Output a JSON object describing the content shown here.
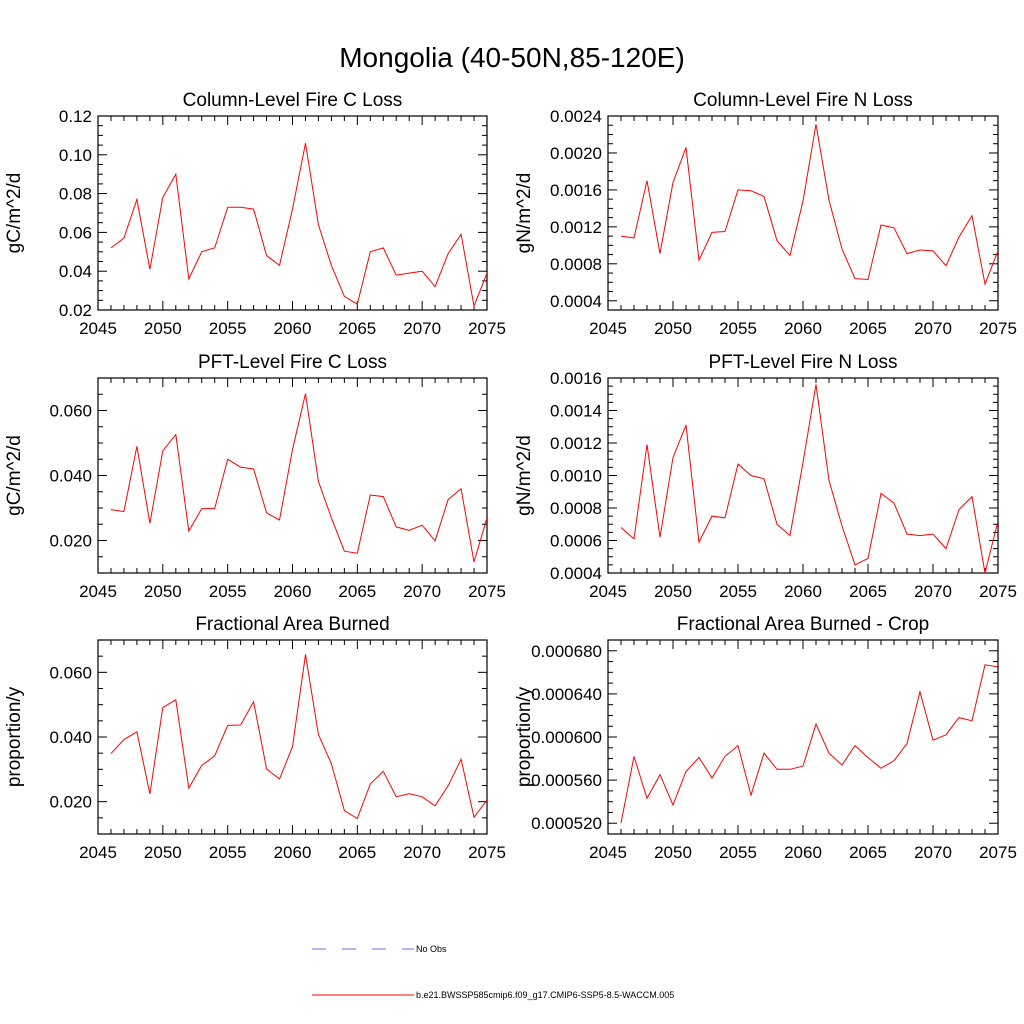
{
  "figure_title": "Mongolia (40-50N,85-120E)",
  "colors": {
    "model_line": "#ff0000",
    "obs_line": "#6f6fd8",
    "axis": "#000000"
  },
  "legend": {
    "obs_label": "No Obs",
    "model_label": "b.e21.BWSSP585cmip6.f09_g17.CMIP6-SSP5-8.5-WACCM.005"
  },
  "chart_data": [
    {
      "type": "line",
      "title": "Column-Level Fire C Loss",
      "xlabel": "",
      "ylabel": "gC/m^2/d",
      "xlim": [
        2045,
        2075
      ],
      "ylim": [
        0.02,
        0.12
      ],
      "xticks": [
        2045,
        2050,
        2055,
        2060,
        2065,
        2070,
        2075
      ],
      "yticks": [
        0.02,
        0.04,
        0.06,
        0.08,
        0.1,
        0.12
      ],
      "ytick_labels": [
        "0.02",
        "0.04",
        "0.06",
        "0.08",
        "0.10",
        "0.12"
      ],
      "x": [
        2046,
        2047,
        2048,
        2049,
        2050,
        2051,
        2052,
        2053,
        2054,
        2055,
        2056,
        2057,
        2058,
        2059,
        2060,
        2061,
        2062,
        2063,
        2064,
        2065,
        2066,
        2067,
        2068,
        2069,
        2070,
        2071,
        2072,
        2073,
        2074,
        2075
      ],
      "series": [
        {
          "name": "b.e21.BWSSP585cmip6.f09_g17.CMIP6-SSP5-8.5-WACCM.005",
          "values": [
            0.052,
            0.057,
            0.077,
            0.041,
            0.078,
            0.09,
            0.036,
            0.05,
            0.052,
            0.073,
            0.073,
            0.072,
            0.048,
            0.043,
            0.072,
            0.106,
            0.064,
            0.043,
            0.027,
            0.023,
            0.05,
            0.052,
            0.038,
            0.039,
            0.04,
            0.032,
            0.049,
            0.059,
            0.022,
            0.039
          ]
        }
      ]
    },
    {
      "type": "line",
      "title": "Column-Level Fire N Loss",
      "xlabel": "",
      "ylabel": "gN/m^2/d",
      "xlim": [
        2045,
        2075
      ],
      "ylim": [
        0.0003,
        0.0024
      ],
      "xticks": [
        2045,
        2050,
        2055,
        2060,
        2065,
        2070,
        2075
      ],
      "yticks": [
        0.0004,
        0.0008,
        0.0012,
        0.0016,
        0.002,
        0.0024
      ],
      "ytick_labels": [
        "0.0004",
        "0.0008",
        "0.0012",
        "0.0016",
        "0.0020",
        "0.0024"
      ],
      "x": [
        2046,
        2047,
        2048,
        2049,
        2050,
        2051,
        2052,
        2053,
        2054,
        2055,
        2056,
        2057,
        2058,
        2059,
        2060,
        2061,
        2062,
        2063,
        2064,
        2065,
        2066,
        2067,
        2068,
        2069,
        2070,
        2071,
        2072,
        2073,
        2074,
        2075
      ],
      "series": [
        {
          "name": "b.e21.BWSSP585cmip6.f09_g17.CMIP6-SSP5-8.5-WACCM.005",
          "values": [
            0.0011,
            0.00108,
            0.0017,
            0.00091,
            0.00168,
            0.00206,
            0.00084,
            0.00114,
            0.00115,
            0.0016,
            0.00159,
            0.00153,
            0.00105,
            0.00089,
            0.00148,
            0.00231,
            0.00149,
            0.00096,
            0.00064,
            0.00063,
            0.00122,
            0.00119,
            0.00091,
            0.00095,
            0.00094,
            0.00078,
            0.00109,
            0.00132,
            0.00058,
            0.00094
          ]
        }
      ]
    },
    {
      "type": "line",
      "title": "PFT-Level Fire C Loss",
      "xlabel": "",
      "ylabel": "gC/m^2/d",
      "xlim": [
        2045,
        2075
      ],
      "ylim": [
        0.01,
        0.07
      ],
      "xticks": [
        2045,
        2050,
        2055,
        2060,
        2065,
        2070,
        2075
      ],
      "yticks": [
        0.02,
        0.04,
        0.06
      ],
      "ytick_labels": [
        "0.020",
        "0.040",
        "0.060"
      ],
      "x": [
        2046,
        2047,
        2048,
        2049,
        2050,
        2051,
        2052,
        2053,
        2054,
        2055,
        2056,
        2057,
        2058,
        2059,
        2060,
        2061,
        2062,
        2063,
        2064,
        2065,
        2066,
        2067,
        2068,
        2069,
        2070,
        2071,
        2072,
        2073,
        2074,
        2075
      ],
      "series": [
        {
          "name": "b.e21.BWSSP585cmip6.f09_g17.CMIP6-SSP5-8.5-WACCM.005",
          "values": [
            0.0295,
            0.0289,
            0.049,
            0.0253,
            0.0476,
            0.0526,
            0.0229,
            0.0298,
            0.0298,
            0.045,
            0.0426,
            0.042,
            0.0285,
            0.0263,
            0.048,
            0.0652,
            0.0382,
            0.027,
            0.0167,
            0.0161,
            0.034,
            0.0335,
            0.0242,
            0.0231,
            0.0247,
            0.0199,
            0.0326,
            0.0359,
            0.0134,
            0.027
          ]
        }
      ]
    },
    {
      "type": "line",
      "title": "PFT-Level Fire N Loss",
      "xlabel": "",
      "ylabel": "gN/m^2/d",
      "xlim": [
        2045,
        2075
      ],
      "ylim": [
        0.0004,
        0.0016
      ],
      "xticks": [
        2045,
        2050,
        2055,
        2060,
        2065,
        2070,
        2075
      ],
      "yticks": [
        0.0004,
        0.0006,
        0.0008,
        0.001,
        0.0012,
        0.0014,
        0.0016
      ],
      "ytick_labels": [
        "0.0004",
        "0.0006",
        "0.0008",
        "0.0010",
        "0.0012",
        "0.0014",
        "0.0016"
      ],
      "x": [
        2046,
        2047,
        2048,
        2049,
        2050,
        2051,
        2052,
        2053,
        2054,
        2055,
        2056,
        2057,
        2058,
        2059,
        2060,
        2061,
        2062,
        2063,
        2064,
        2065,
        2066,
        2067,
        2068,
        2069,
        2070,
        2071,
        2072,
        2073,
        2074,
        2075
      ],
      "series": [
        {
          "name": "b.e21.BWSSP585cmip6.f09_g17.CMIP6-SSP5-8.5-WACCM.005",
          "values": [
            0.00068,
            0.00061,
            0.00119,
            0.00062,
            0.00111,
            0.00131,
            0.00059,
            0.00075,
            0.00074,
            0.00107,
            0.001,
            0.00098,
            0.0007,
            0.00063,
            0.00108,
            0.00156,
            0.00097,
            0.00069,
            0.00045,
            0.00049,
            0.00089,
            0.00083,
            0.00064,
            0.00063,
            0.00064,
            0.00055,
            0.00079,
            0.00087,
            0.0004,
            0.00072
          ]
        }
      ]
    },
    {
      "type": "line",
      "title": "Fractional Area Burned",
      "xlabel": "",
      "ylabel": "proportion/y",
      "xlim": [
        2045,
        2075
      ],
      "ylim": [
        0.01,
        0.07
      ],
      "xticks": [
        2045,
        2050,
        2055,
        2060,
        2065,
        2070,
        2075
      ],
      "yticks": [
        0.02,
        0.04,
        0.06
      ],
      "ytick_labels": [
        "0.020",
        "0.040",
        "0.060"
      ],
      "x": [
        2046,
        2047,
        2048,
        2049,
        2050,
        2051,
        2052,
        2053,
        2054,
        2055,
        2056,
        2057,
        2058,
        2059,
        2060,
        2061,
        2062,
        2063,
        2064,
        2065,
        2066,
        2067,
        2068,
        2069,
        2070,
        2071,
        2072,
        2073,
        2074,
        2075
      ],
      "series": [
        {
          "name": "b.e21.BWSSP585cmip6.f09_g17.CMIP6-SSP5-8.5-WACCM.005",
          "values": [
            0.0349,
            0.0392,
            0.0416,
            0.0224,
            0.0491,
            0.0515,
            0.0242,
            0.0312,
            0.0342,
            0.0436,
            0.0437,
            0.0509,
            0.0301,
            0.027,
            0.037,
            0.0655,
            0.0408,
            0.0317,
            0.0172,
            0.0148,
            0.0255,
            0.0294,
            0.0215,
            0.0225,
            0.0215,
            0.0187,
            0.0249,
            0.0331,
            0.0152,
            0.0205
          ]
        }
      ]
    },
    {
      "type": "line",
      "title": "Fractional Area Burned - Crop",
      "xlabel": "",
      "ylabel": "proportion/y",
      "xlim": [
        2045,
        2075
      ],
      "ylim": [
        0.00051,
        0.00069
      ],
      "xticks": [
        2045,
        2050,
        2055,
        2060,
        2065,
        2070,
        2075
      ],
      "yticks": [
        0.00052,
        0.00056,
        0.0006,
        0.00064,
        0.00068
      ],
      "ytick_labels": [
        "0.000520",
        "0.000560",
        "0.000600",
        "0.000640",
        "0.000680"
      ],
      "x": [
        2046,
        2047,
        2048,
        2049,
        2050,
        2051,
        2052,
        2053,
        2054,
        2055,
        2056,
        2057,
        2058,
        2059,
        2060,
        2061,
        2062,
        2063,
        2064,
        2065,
        2066,
        2067,
        2068,
        2069,
        2070,
        2071,
        2072,
        2073,
        2074,
        2075
      ],
      "series": [
        {
          "name": "b.e21.BWSSP585cmip6.f09_g17.CMIP6-SSP5-8.5-WACCM.005",
          "values": [
            0.00052,
            0.000582,
            0.000543,
            0.000565,
            0.000537,
            0.000568,
            0.000581,
            0.000562,
            0.000582,
            0.000592,
            0.000546,
            0.000585,
            0.00057,
            0.00057,
            0.000573,
            0.000612,
            0.000585,
            0.000574,
            0.000592,
            0.000581,
            0.000571,
            0.000578,
            0.000594,
            0.000642,
            0.000597,
            0.000602,
            0.000618,
            0.000615,
            0.000667,
            0.000665
          ]
        }
      ]
    }
  ]
}
